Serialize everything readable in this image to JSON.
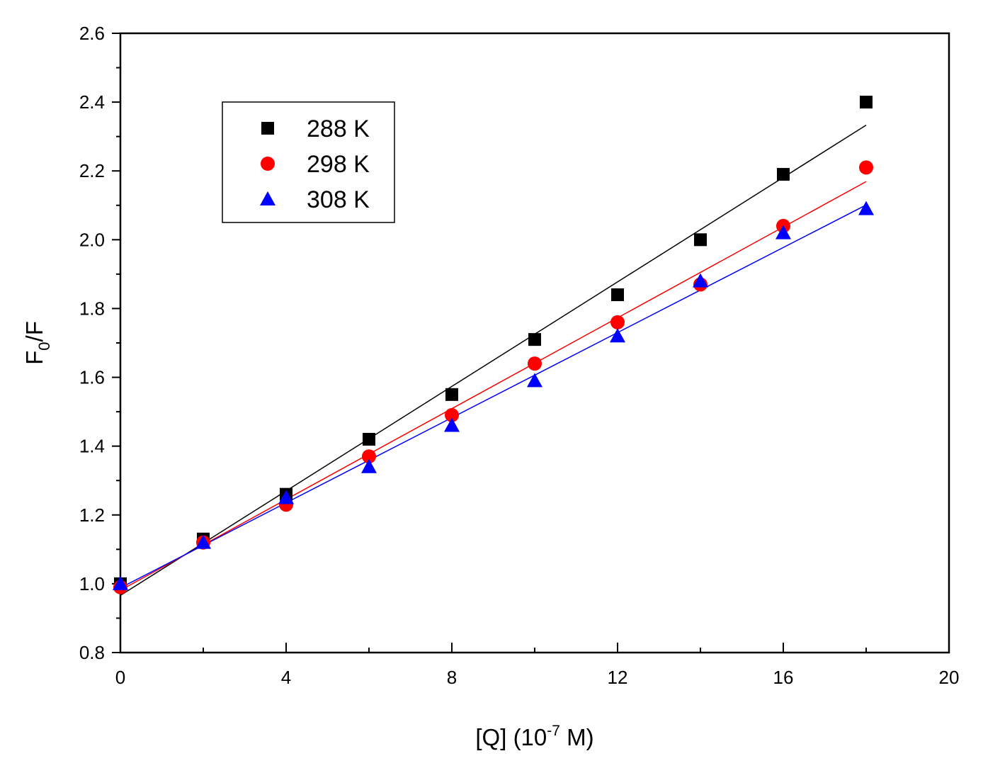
{
  "chart_data": {
    "type": "scatter",
    "title": "",
    "xlabel": "[Q] (10-7 M)",
    "xlabel_parts": {
      "main": "[Q] (10",
      "sup": "-7",
      "tail": " M)"
    },
    "ylabel": "F0/F",
    "ylabel_parts": {
      "main": "F",
      "sub": "0",
      "tail": "/F"
    },
    "xlim": [
      0,
      20
    ],
    "ylim": [
      0.8,
      2.6
    ],
    "x_ticks": [
      0,
      4,
      8,
      12,
      16,
      20
    ],
    "x_tick_labels": [
      "0",
      "4",
      "8",
      "12",
      "16",
      "20"
    ],
    "y_ticks": [
      0.8,
      1.0,
      1.2,
      1.4,
      1.6,
      1.8,
      2.0,
      2.2,
      2.4,
      2.6
    ],
    "y_tick_labels": [
      "0.8",
      "1.0",
      "1.2",
      "1.4",
      "1.6",
      "1.8",
      "2.0",
      "2.2",
      "2.4",
      "2.6"
    ],
    "grid": false,
    "legend_position": "top-left",
    "series": [
      {
        "name": "288 K",
        "marker": "square",
        "color": "#000000",
        "line_color": "#000000",
        "x": [
          0,
          2,
          4,
          6,
          8,
          10,
          12,
          14,
          16,
          18
        ],
        "y": [
          1.0,
          1.13,
          1.26,
          1.42,
          1.55,
          1.71,
          1.84,
          2.0,
          2.19,
          2.4
        ],
        "fit": {
          "x": [
            0,
            18
          ],
          "y": [
            0.966,
            2.333
          ]
        }
      },
      {
        "name": "298 K",
        "marker": "circle",
        "color": "#ff0000",
        "line_color": "#ff0000",
        "x": [
          0,
          2,
          4,
          6,
          8,
          10,
          12,
          14,
          16,
          18
        ],
        "y": [
          0.99,
          1.12,
          1.23,
          1.37,
          1.49,
          1.64,
          1.76,
          1.87,
          2.04,
          2.21
        ],
        "fit": {
          "x": [
            0,
            18
          ],
          "y": [
            0.981,
            2.169
          ]
        }
      },
      {
        "name": "308 K",
        "marker": "triangle",
        "color": "#0000ff",
        "line_color": "#0000ff",
        "x": [
          0,
          2,
          4,
          6,
          8,
          10,
          12,
          14,
          16,
          18
        ],
        "y": [
          1.0,
          1.12,
          1.25,
          1.34,
          1.46,
          1.59,
          1.72,
          1.88,
          2.02,
          2.09
        ],
        "fit": {
          "x": [
            0,
            18
          ],
          "y": [
            0.988,
            2.101
          ]
        }
      }
    ]
  }
}
